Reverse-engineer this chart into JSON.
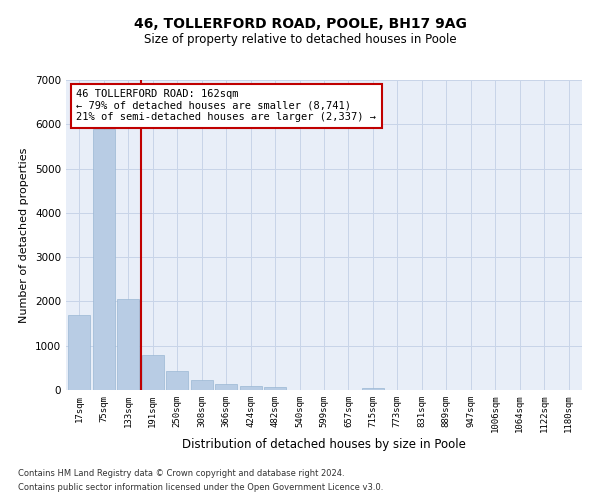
{
  "title1": "46, TOLLERFORD ROAD, POOLE, BH17 9AG",
  "title2": "Size of property relative to detached houses in Poole",
  "xlabel": "Distribution of detached houses by size in Poole",
  "ylabel": "Number of detached properties",
  "categories": [
    "17sqm",
    "75sqm",
    "133sqm",
    "191sqm",
    "250sqm",
    "308sqm",
    "366sqm",
    "424sqm",
    "482sqm",
    "540sqm",
    "599sqm",
    "657sqm",
    "715sqm",
    "773sqm",
    "831sqm",
    "889sqm",
    "947sqm",
    "1006sqm",
    "1064sqm",
    "1122sqm",
    "1180sqm"
  ],
  "values": [
    1700,
    5900,
    2050,
    800,
    430,
    220,
    130,
    100,
    70,
    0,
    0,
    0,
    50,
    0,
    0,
    0,
    0,
    0,
    0,
    0,
    0
  ],
  "bar_color": "#b8cce4",
  "bar_edge_color": "#9ab8d4",
  "vline_color": "#c00000",
  "annotation_line1": "46 TOLLERFORD ROAD: 162sqm",
  "annotation_line2": "← 79% of detached houses are smaller (8,741)",
  "annotation_line3": "21% of semi-detached houses are larger (2,337) →",
  "annotation_box_color": "#c00000",
  "ylim": [
    0,
    7000
  ],
  "yticks": [
    0,
    1000,
    2000,
    3000,
    4000,
    5000,
    6000,
    7000
  ],
  "grid_color": "#c8d4e8",
  "background_color": "#e8eef8",
  "footnote1": "Contains HM Land Registry data © Crown copyright and database right 2024.",
  "footnote2": "Contains public sector information licensed under the Open Government Licence v3.0."
}
